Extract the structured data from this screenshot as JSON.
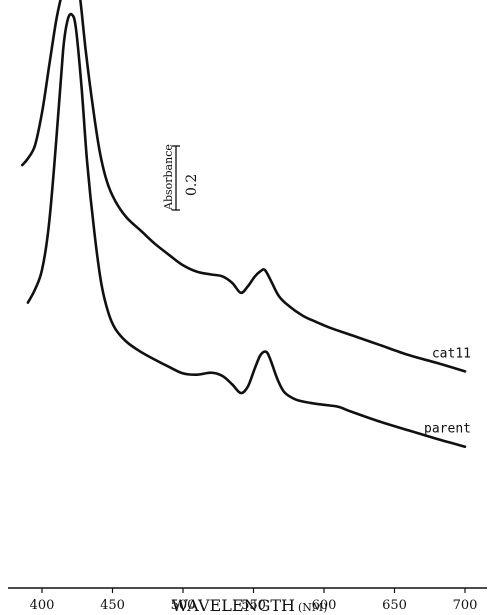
{
  "chart_data": {
    "type": "line",
    "xlabel": "WAVELENGTH",
    "xlabel_unit": "(NM)",
    "xlim": [
      385,
      705
    ],
    "x_ticks": [
      400,
      450,
      500,
      550,
      600,
      650,
      700
    ],
    "grid": false,
    "scale_bar": {
      "label": "Absorbance",
      "value": "0.2"
    },
    "series": [
      {
        "name": "parent",
        "points": [
          [
            390,
            0.225
          ],
          [
            395,
            0.245
          ],
          [
            400,
            0.275
          ],
          [
            405,
            0.345
          ],
          [
            410,
            0.47
          ],
          [
            415,
            0.61
          ],
          [
            418,
            0.655
          ],
          [
            421,
            0.665
          ],
          [
            424,
            0.645
          ],
          [
            428,
            0.555
          ],
          [
            432,
            0.44
          ],
          [
            437,
            0.335
          ],
          [
            442,
            0.255
          ],
          [
            447,
            0.21
          ],
          [
            452,
            0.185
          ],
          [
            460,
            0.165
          ],
          [
            470,
            0.15
          ],
          [
            480,
            0.138
          ],
          [
            490,
            0.127
          ],
          [
            500,
            0.117
          ],
          [
            510,
            0.115
          ],
          [
            520,
            0.118
          ],
          [
            528,
            0.113
          ],
          [
            535,
            0.1
          ],
          [
            541,
            0.087
          ],
          [
            546,
            0.097
          ],
          [
            551,
            0.125
          ],
          [
            555,
            0.145
          ],
          [
            559,
            0.15
          ],
          [
            562,
            0.138
          ],
          [
            567,
            0.108
          ],
          [
            572,
            0.088
          ],
          [
            580,
            0.077
          ],
          [
            590,
            0.072
          ],
          [
            600,
            0.069
          ],
          [
            610,
            0.066
          ],
          [
            620,
            0.058
          ],
          [
            640,
            0.043
          ],
          [
            660,
            0.03
          ],
          [
            680,
            0.017
          ],
          [
            700,
            0.005
          ]
        ]
      },
      {
        "name": "cat11",
        "points": [
          [
            386,
            0.435
          ],
          [
            390,
            0.445
          ],
          [
            395,
            0.465
          ],
          [
            400,
            0.515
          ],
          [
            405,
            0.585
          ],
          [
            410,
            0.655
          ],
          [
            414,
            0.695
          ],
          [
            418,
            0.725
          ],
          [
            421,
            0.735
          ],
          [
            424,
            0.72
          ],
          [
            427,
            0.69
          ],
          [
            431,
            0.61
          ],
          [
            436,
            0.525
          ],
          [
            441,
            0.455
          ],
          [
            446,
            0.41
          ],
          [
            452,
            0.38
          ],
          [
            460,
            0.355
          ],
          [
            470,
            0.335
          ],
          [
            480,
            0.315
          ],
          [
            490,
            0.298
          ],
          [
            500,
            0.282
          ],
          [
            510,
            0.272
          ],
          [
            520,
            0.268
          ],
          [
            528,
            0.265
          ],
          [
            535,
            0.255
          ],
          [
            541,
            0.24
          ],
          [
            546,
            0.25
          ],
          [
            551,
            0.265
          ],
          [
            555,
            0.273
          ],
          [
            558,
            0.275
          ],
          [
            562,
            0.26
          ],
          [
            568,
            0.235
          ],
          [
            575,
            0.22
          ],
          [
            585,
            0.205
          ],
          [
            595,
            0.195
          ],
          [
            605,
            0.186
          ],
          [
            620,
            0.175
          ],
          [
            640,
            0.16
          ],
          [
            660,
            0.145
          ],
          [
            680,
            0.133
          ],
          [
            700,
            0.12
          ]
        ]
      }
    ]
  }
}
